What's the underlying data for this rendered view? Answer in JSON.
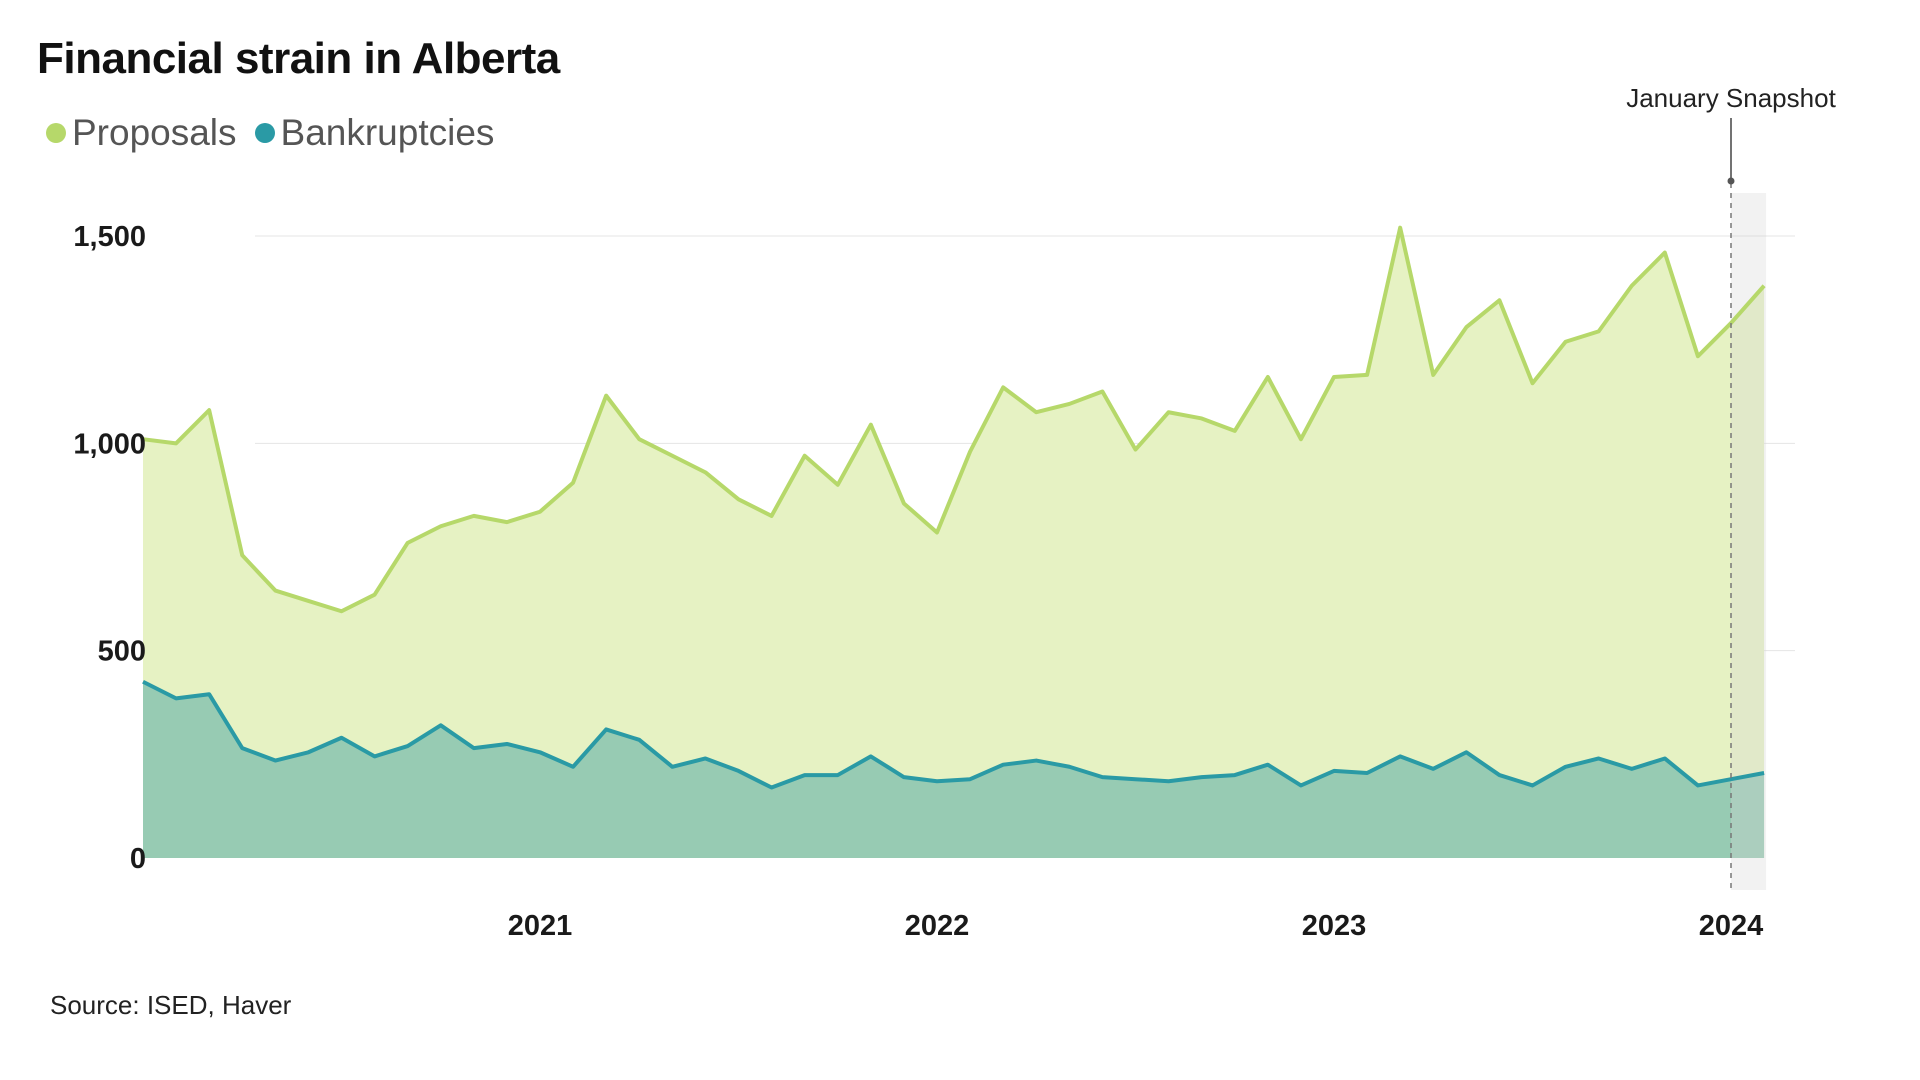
{
  "title": "Financial strain in Alberta",
  "source": "Source: ISED, Haver",
  "colors": {
    "proposals_line": "#b6d86a",
    "proposals_fill": "#e6f2c3",
    "bankruptcies_line": "#2a9aa5",
    "bankruptcies_fill": "#97cbb3",
    "snapshot_shade": "#d8d8d8",
    "grid": "#e4e4e4"
  },
  "chart_data": {
    "type": "area",
    "title": "Financial strain in Alberta",
    "xlabel": "",
    "ylabel": "",
    "x_start": "2020-01",
    "x_frequency": "monthly",
    "x_ticks": [
      "2021",
      "2022",
      "2023",
      "2024"
    ],
    "y_ticks": [
      "0",
      "500",
      "1,000",
      "1,500"
    ],
    "y_tick_values": [
      0,
      500,
      1000,
      1500
    ],
    "ylim": [
      0,
      1600
    ],
    "grid": "horizontal",
    "legend_position": "top-left",
    "series": [
      {
        "name": "Proposals",
        "values": [
          1010,
          1000,
          1080,
          730,
          645,
          620,
          595,
          635,
          760,
          800,
          825,
          810,
          835,
          905,
          1115,
          1010,
          970,
          930,
          865,
          825,
          970,
          900,
          1045,
          855,
          785,
          980,
          1135,
          1075,
          1095,
          1125,
          985,
          1075,
          1060,
          1030,
          1160,
          1010,
          1160,
          1165,
          1520,
          1165,
          1280,
          1345,
          1145,
          1245,
          1270,
          1380,
          1460,
          1210,
          1290,
          1380
        ]
      },
      {
        "name": "Bankruptcies",
        "values": [
          425,
          385,
          395,
          265,
          235,
          255,
          290,
          245,
          270,
          320,
          265,
          275,
          255,
          220,
          310,
          285,
          220,
          240,
          210,
          170,
          200,
          200,
          245,
          195,
          185,
          190,
          225,
          235,
          220,
          195,
          190,
          185,
          195,
          200,
          225,
          175,
          210,
          205,
          245,
          215,
          255,
          200,
          175,
          220,
          240,
          215,
          240,
          175,
          190,
          205
        ]
      }
    ],
    "annotations": [
      {
        "label": "January Snapshot",
        "x": "2024-01"
      }
    ]
  }
}
